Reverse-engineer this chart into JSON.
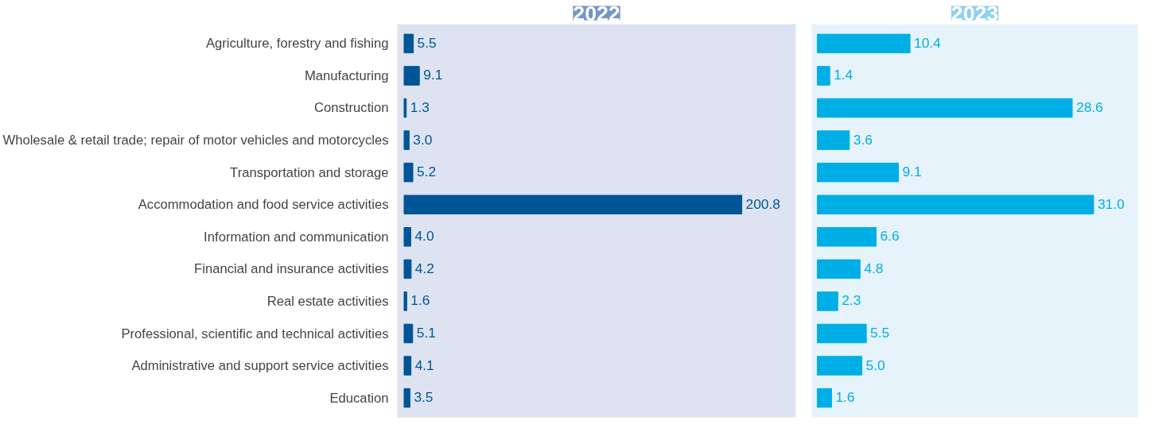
{
  "chart_data": [
    {
      "type": "bar",
      "orientation": "horizontal",
      "title": "2022",
      "tick_labels": "y",
      "categories": [
        "Agriculture, forestry and fishing",
        "Manufacturing",
        "Construction",
        "Wholesale & retail trade; repair of motor vehicles and motorcycles",
        "Transportation and storage",
        "Accommodation and food service activities",
        "Information and communication",
        "Financial and insurance activities",
        "Real estate activities",
        "Professional, scientific and technical activities",
        "Administrative and support service activities",
        "Education"
      ],
      "values": [
        5.5,
        9.1,
        1.3,
        3.0,
        5.2,
        200.8,
        4.0,
        4.2,
        1.6,
        5.1,
        4.1,
        3.5
      ],
      "value_labels": [
        "5.5",
        "9.1",
        "1.3",
        "3.0",
        "5.2",
        "200.8",
        "4.0",
        "4.2",
        "1.6",
        "5.1",
        "4.1",
        "3.5"
      ],
      "color": "#005596"
    },
    {
      "type": "bar",
      "orientation": "horizontal",
      "title": "2023",
      "tick_labels": false,
      "categories": [
        null,
        null,
        null,
        null,
        null,
        null,
        null,
        null,
        null,
        null,
        null,
        null
      ],
      "values": [
        10.4,
        1.4,
        28.6,
        3.6,
        9.1,
        31.0,
        6.6,
        4.8,
        2.3,
        5.5,
        5.0,
        1.6
      ],
      "value_labels": [
        "10.4",
        "1.4",
        "28.6",
        "3.6",
        "9.1",
        "31.0",
        "6.6",
        "4.8",
        "2.3",
        "5.5",
        "5.0",
        "1.6"
      ],
      "color": "#00aee6"
    }
  ]
}
